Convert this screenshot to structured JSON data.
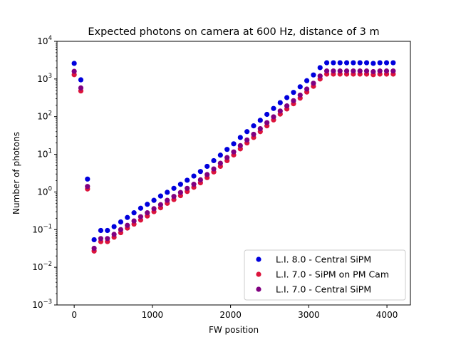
{
  "chart_data": {
    "type": "scatter",
    "title": "Expected photons on camera at 600 Hz, distance of 3 m",
    "xlabel": "FW position",
    "ylabel": "Number of photons",
    "xlim": [
      -220,
      4300
    ],
    "ylim": [
      0.001,
      10000
    ],
    "yscale": "log",
    "xticks": [
      0,
      1000,
      2000,
      3000,
      4000
    ],
    "yticks": [
      0.001,
      0.01,
      0.1,
      1,
      10,
      100,
      1000,
      10000
    ],
    "ytick_base": "10",
    "ytick_exponents": [
      "−3",
      "−2",
      "−1",
      "0",
      "1",
      "2",
      "3",
      "4"
    ],
    "grid": false,
    "legend_position": "bottom-right",
    "x": [
      0,
      85,
      170,
      255,
      340,
      425,
      510,
      595,
      680,
      765,
      850,
      935,
      1020,
      1105,
      1190,
      1275,
      1360,
      1445,
      1530,
      1615,
      1700,
      1785,
      1870,
      1955,
      2040,
      2125,
      2210,
      2295,
      2380,
      2465,
      2550,
      2635,
      2720,
      2805,
      2890,
      2975,
      3060,
      3145,
      3230,
      3315,
      3400,
      3485,
      3570,
      3655,
      3740,
      3825,
      3910,
      3995,
      4080
    ],
    "series": [
      {
        "name": "L.I. 8.0 - Central SiPM",
        "color": "#0000dd",
        "values": [
          2600,
          950,
          2.2,
          0.054,
          0.095,
          0.095,
          0.12,
          0.16,
          0.21,
          0.28,
          0.37,
          0.47,
          0.6,
          0.78,
          0.98,
          1.25,
          1.6,
          2.05,
          2.65,
          3.5,
          4.8,
          6.8,
          9.5,
          13.5,
          19,
          28,
          40,
          57,
          80,
          115,
          165,
          235,
          320,
          440,
          620,
          900,
          1280,
          2000,
          2700,
          2700,
          2700,
          2700,
          2700,
          2700,
          2700,
          2600,
          2700,
          2700,
          2700
        ]
      },
      {
        "name": "L.I. 7.0 - SiPM on PM Cam",
        "color": "#dc143c",
        "values": [
          1300,
          480,
          1.2,
          0.027,
          0.048,
          0.048,
          0.063,
          0.083,
          0.11,
          0.14,
          0.18,
          0.23,
          0.3,
          0.38,
          0.5,
          0.63,
          0.8,
          1.03,
          1.33,
          1.75,
          2.4,
          3.4,
          4.8,
          6.8,
          9.6,
          14,
          20,
          28,
          40,
          57,
          82,
          117,
          160,
          220,
          310,
          450,
          640,
          1000,
          1350,
          1350,
          1350,
          1350,
          1350,
          1350,
          1350,
          1300,
          1350,
          1350,
          1350
        ]
      },
      {
        "name": "L.I. 7.0 - Central SiPM",
        "color": "#800080",
        "values": [
          1600,
          580,
          1.4,
          0.032,
          0.058,
          0.058,
          0.075,
          0.1,
          0.13,
          0.17,
          0.22,
          0.28,
          0.36,
          0.46,
          0.6,
          0.76,
          0.97,
          1.25,
          1.6,
          2.1,
          2.9,
          4.1,
          5.8,
          8.2,
          11.6,
          17,
          24,
          34,
          48,
          69,
          99,
          141,
          193,
          265,
          374,
          542,
          771,
          1200,
          1630,
          1630,
          1630,
          1630,
          1630,
          1630,
          1630,
          1570,
          1630,
          1630,
          1630
        ]
      }
    ]
  }
}
